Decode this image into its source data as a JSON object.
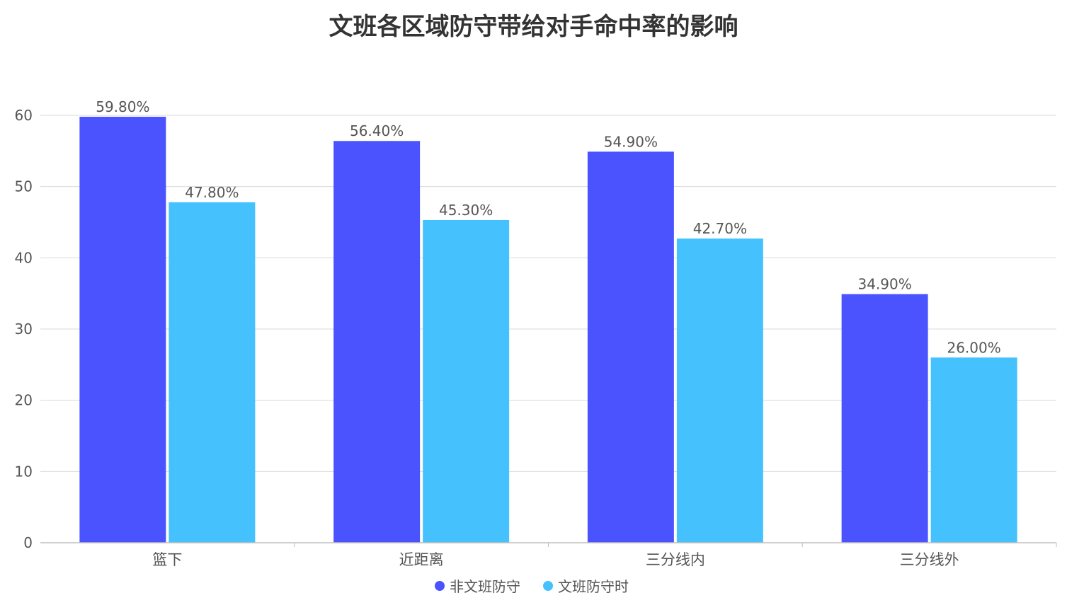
{
  "chart_data": {
    "type": "bar",
    "title": "文班各区域防守带给对手命中率的影响",
    "categories": [
      "篮下",
      "近距离",
      "三分线内",
      "三分线外"
    ],
    "series": [
      {
        "name": "非文班防守",
        "color": "#4b53ff",
        "values": [
          59.8,
          56.4,
          54.9,
          34.9
        ],
        "labels": [
          "59.80%",
          "56.40%",
          "54.90%",
          "34.90%"
        ]
      },
      {
        "name": "文班防守时",
        "color": "#45c2fd",
        "values": [
          47.8,
          45.3,
          42.7,
          26.0
        ],
        "labels": [
          "47.80%",
          "45.30%",
          "42.70%",
          "26.00%"
        ]
      }
    ],
    "ylim": [
      0,
      60
    ],
    "yticks": [
      "0",
      "10",
      "20",
      "30",
      "40",
      "50",
      "60"
    ],
    "xlabel": "",
    "ylabel": "",
    "grid": true,
    "legend_position": "bottom-center"
  }
}
